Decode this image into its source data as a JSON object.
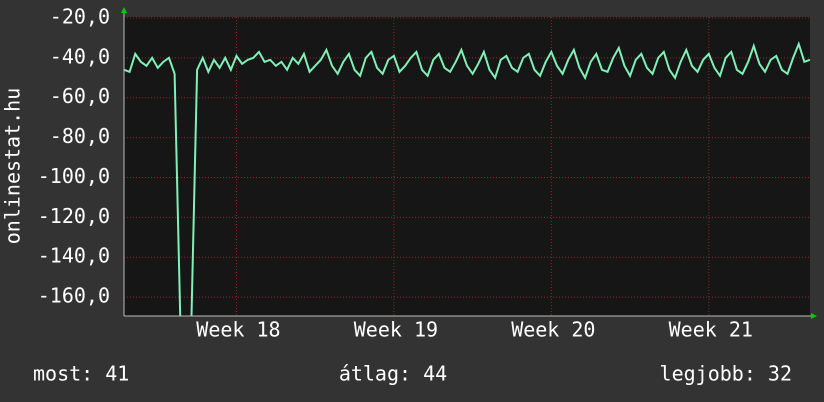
{
  "chart_data": {
    "type": "line",
    "ylabel": "onlinestat.hu",
    "x": [
      0,
      0.25,
      0.5,
      0.75,
      1,
      1.25,
      1.5,
      1.75,
      2,
      2.25,
      2.5,
      2.75,
      3,
      3.25,
      3.5,
      3.75,
      4,
      4.25,
      4.5,
      4.75,
      5,
      5.25,
      5.5,
      5.75,
      6,
      6.25,
      6.5,
      6.75,
      7,
      7.25,
      7.5,
      7.75,
      8,
      8.25,
      8.5,
      8.75,
      9,
      9.25,
      9.5,
      9.75,
      10,
      10.25,
      10.5,
      10.75,
      11,
      11.25,
      11.5,
      11.75,
      12,
      12.25,
      12.5,
      12.75,
      13,
      13.25,
      13.5,
      13.75,
      14,
      14.25,
      14.5,
      14.75,
      15,
      15.25,
      15.5,
      15.75,
      16,
      16.25,
      16.5,
      16.75,
      17,
      17.25,
      17.5,
      17.75,
      18,
      18.25,
      18.5,
      18.75,
      19,
      19.25,
      19.5,
      19.75,
      20,
      20.25,
      20.5,
      20.75,
      21,
      21.25,
      21.5,
      21.75,
      22,
      22.25,
      22.5,
      22.75,
      23,
      23.25,
      23.5,
      23.75,
      24,
      24.25,
      24.5,
      24.75,
      25,
      25.25,
      25.5,
      25.75,
      26,
      26.25,
      26.5,
      26.75,
      27,
      27.25,
      27.5,
      27.75,
      28,
      28.25,
      28.5,
      28.75,
      29,
      29.25,
      29.5,
      29.75,
      30,
      30.25,
      30.5
    ],
    "series": [
      {
        "name": "onlinestat.hu",
        "color": "#7ff0b8",
        "values": [
          -46,
          -47,
          -38,
          -42,
          -44,
          -40,
          -45,
          -42,
          -40,
          -48,
          -170,
          -170,
          -170,
          -46,
          -40,
          -47,
          -41,
          -45,
          -40,
          -46,
          -39,
          -43,
          -41,
          -40,
          -37,
          -42,
          -41,
          -44,
          -42,
          -46,
          -40,
          -43,
          -38,
          -47,
          -44,
          -41,
          -36,
          -44,
          -48,
          -42,
          -38,
          -46,
          -49,
          -40,
          -37,
          -45,
          -48,
          -41,
          -39,
          -47,
          -44,
          -40,
          -37,
          -46,
          -49,
          -41,
          -38,
          -45,
          -47,
          -42,
          -36,
          -44,
          -48,
          -43,
          -37,
          -46,
          -50,
          -41,
          -39,
          -45,
          -47,
          -40,
          -38,
          -46,
          -49,
          -42,
          -37,
          -44,
          -48,
          -41,
          -36,
          -45,
          -50,
          -42,
          -38,
          -46,
          -47,
          -40,
          -35,
          -44,
          -49,
          -41,
          -38,
          -45,
          -48,
          -40,
          -37,
          -46,
          -50,
          -42,
          -36,
          -44,
          -47,
          -41,
          -38,
          -45,
          -49,
          -40,
          -37,
          -46,
          -48,
          -42,
          -34,
          -43,
          -47,
          -41,
          -39,
          -46,
          -48,
          -40,
          -33,
          -42,
          -41
        ]
      }
    ],
    "xlim": [
      0,
      30.5
    ],
    "xticks": [
      {
        "value": 5,
        "label": "Week 18"
      },
      {
        "value": 12,
        "label": "Week 19"
      },
      {
        "value": 19,
        "label": "Week 20"
      },
      {
        "value": 26,
        "label": "Week 21"
      }
    ],
    "ylim": [
      -169.5,
      -19.5
    ],
    "yticks": [
      {
        "value": -20,
        "label": "-20,0"
      },
      {
        "value": -40,
        "label": "-40,0"
      },
      {
        "value": -60,
        "label": "-60,0"
      },
      {
        "value": -80,
        "label": "-80,0"
      },
      {
        "value": -100,
        "label": "-100,0"
      },
      {
        "value": -120,
        "label": "-120,0"
      },
      {
        "value": -140,
        "label": "-140,0"
      },
      {
        "value": -160,
        "label": "-160,0"
      }
    ],
    "grid": true,
    "footer": [
      "most: 41",
      "átlag: 44",
      "legjobb: 32"
    ]
  }
}
